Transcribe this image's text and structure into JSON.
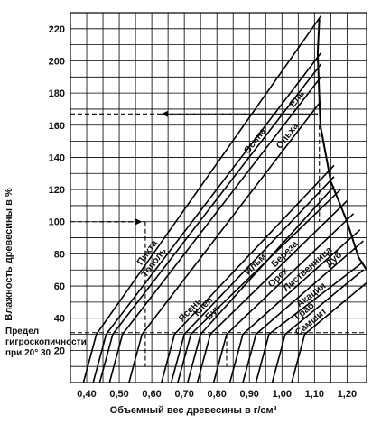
{
  "chart_data": {
    "type": "line",
    "xlabel": "Объемный вес древесины в г/см³",
    "ylabel": "Влажность древесины в %",
    "xlim": [
      0.35,
      1.26
    ],
    "ylim": [
      0,
      230
    ],
    "x_ticks": [
      "0,40",
      "0,50",
      "0,60",
      "0,70",
      "0,80",
      "0,90",
      "1,00",
      "1,10",
      "1,20"
    ],
    "y_ticks": [
      "20",
      "40",
      "60",
      "80",
      "100",
      "120",
      "140",
      "160",
      "180",
      "200",
      "220"
    ],
    "grid": true,
    "fsp_label_lines": [
      "Предел",
      "гигроскопичности",
      "при 20° 30"
    ],
    "fsp_moisture": 30,
    "saturation_curve": [
      [
        1.115,
        226
      ],
      [
        1.11,
        205
      ],
      [
        1.118,
        160
      ],
      [
        1.15,
        125
      ],
      [
        1.2,
        100
      ],
      [
        1.235,
        78
      ],
      [
        1.26,
        70
      ]
    ],
    "series": [
      {
        "name": "Пихта",
        "values": [
          [
            0.39,
            0
          ],
          [
            0.43,
            30
          ],
          [
            1.12,
            228
          ]
        ]
      },
      {
        "name": "Тополь",
        "values": [
          [
            0.42,
            0
          ],
          [
            0.46,
            30
          ],
          [
            1.12,
            205
          ]
        ]
      },
      {
        "name": "Осина",
        "values": [
          [
            0.44,
            0
          ],
          [
            0.48,
            30
          ],
          [
            1.12,
            198
          ]
        ]
      },
      {
        "name": "Ель",
        "values": [
          [
            0.47,
            0
          ],
          [
            0.51,
            30
          ],
          [
            1.12,
            190
          ]
        ]
      },
      {
        "name": "Ольха",
        "values": [
          [
            0.53,
            0
          ],
          [
            0.57,
            30
          ],
          [
            1.12,
            175
          ]
        ]
      },
      {
        "name": "Ясень",
        "values": [
          [
            0.63,
            0
          ],
          [
            0.67,
            30
          ],
          [
            1.16,
            135
          ]
        ]
      },
      {
        "name": "Клен",
        "values": [
          [
            0.66,
            0
          ],
          [
            0.7,
            30
          ],
          [
            1.16,
            128
          ]
        ]
      },
      {
        "name": "Бук",
        "values": [
          [
            0.71,
            0
          ],
          [
            0.75,
            30
          ],
          [
            1.16,
            122
          ]
        ]
      },
      {
        "name": "Ильм",
        "values": [
          [
            0.68,
            0
          ],
          [
            0.72,
            30
          ],
          [
            1.18,
            120
          ]
        ]
      },
      {
        "name": "Береза",
        "values": [
          [
            0.74,
            0
          ],
          [
            0.78,
            30
          ],
          [
            1.2,
            113
          ]
        ]
      },
      {
        "name": "Орех",
        "values": [
          [
            0.79,
            0
          ],
          [
            0.83,
            30
          ],
          [
            1.22,
            105
          ]
        ]
      },
      {
        "name": "Лиственница",
        "values": [
          [
            0.84,
            0
          ],
          [
            0.88,
            30
          ],
          [
            1.24,
            95
          ]
        ]
      },
      {
        "name": "Дуб",
        "values": [
          [
            0.88,
            0
          ],
          [
            0.92,
            30
          ],
          [
            1.25,
            88
          ]
        ]
      },
      {
        "name": "Акация",
        "values": [
          [
            0.92,
            0
          ],
          [
            0.96,
            30
          ],
          [
            1.25,
            75
          ]
        ]
      },
      {
        "name": "Граб",
        "values": [
          [
            0.97,
            0
          ],
          [
            1.01,
            30
          ],
          [
            1.25,
            70
          ]
        ]
      },
      {
        "name": "Самшит",
        "values": [
          [
            1.03,
            0
          ],
          [
            1.07,
            30
          ],
          [
            1.26,
            62
          ]
        ]
      }
    ],
    "example_lines": [
      {
        "kind": "arrow",
        "points": [
          [
            1.11,
            167
          ],
          [
            0.63,
            167
          ]
        ]
      },
      {
        "kind": "dashed",
        "points": [
          [
            0.35,
            167
          ],
          [
            1.11,
            167
          ]
        ]
      },
      {
        "kind": "arrow",
        "points": [
          [
            0.44,
            100
          ],
          [
            0.57,
            100
          ]
        ]
      },
      {
        "kind": "dashed",
        "points": [
          [
            0.35,
            100
          ],
          [
            0.58,
            100
          ]
        ]
      },
      {
        "kind": "dashed",
        "points": [
          [
            0.58,
            100
          ],
          [
            0.58,
            32
          ]
        ]
      },
      {
        "kind": "dashed",
        "points": [
          [
            1.115,
            160
          ],
          [
            1.115,
            100
          ]
        ]
      },
      {
        "kind": "dashed",
        "points": [
          [
            0.83,
            30
          ],
          [
            0.83,
            10
          ]
        ]
      },
      {
        "kind": "dashed",
        "points": [
          [
            0.58,
            30
          ],
          [
            0.58,
            10
          ]
        ]
      },
      {
        "kind": "dashed",
        "points": [
          [
            0.35,
            31
          ],
          [
            1.26,
            31
          ]
        ]
      }
    ]
  }
}
